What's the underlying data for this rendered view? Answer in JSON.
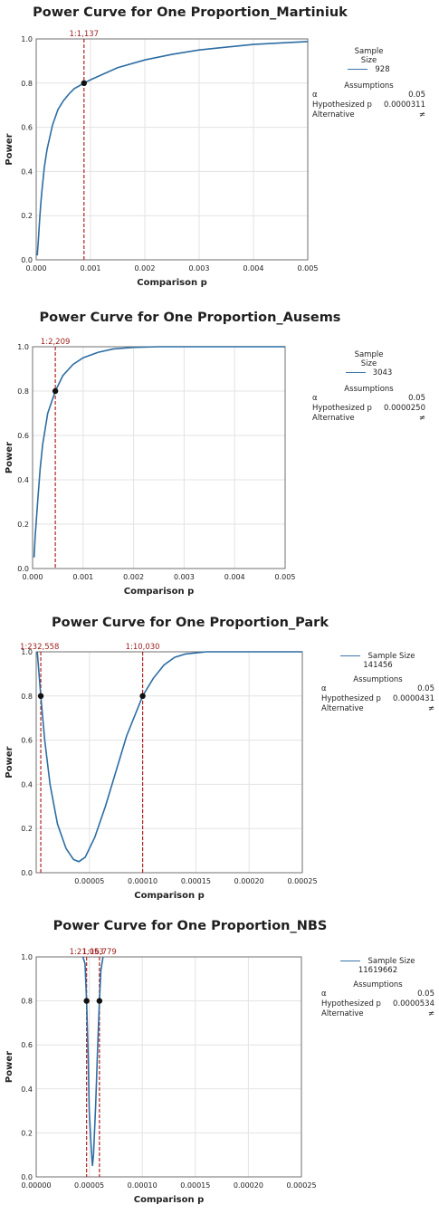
{
  "colors": {
    "curve": "#2d6da3",
    "marker": "#b22222",
    "grid": "#e3e3e3",
    "point": "#111111"
  },
  "chart_data": [
    {
      "type": "line",
      "title": "Power Curve for One Proportion_Martiniuk",
      "xlabel": "Comparison p",
      "ylabel": "Power",
      "xlim": [
        0,
        0.005
      ],
      "ylim": [
        0,
        1
      ],
      "xticks": [
        "0.000",
        "0.001",
        "0.002",
        "0.003",
        "0.004",
        "0.005"
      ],
      "yticks": [
        "0.0",
        "0.2",
        "0.4",
        "0.6",
        "0.8",
        "1.0"
      ],
      "grid": true,
      "series": [
        {
          "values": [
            [
              2e-05,
              0.02
            ],
            [
              4e-05,
              0.09
            ],
            [
              6e-05,
              0.17
            ],
            [
              8e-05,
              0.24
            ],
            [
              0.0001,
              0.3
            ],
            [
              0.00015,
              0.42
            ],
            [
              0.0002,
              0.5
            ],
            [
              0.0003,
              0.61
            ],
            [
              0.0004,
              0.68
            ],
            [
              0.0005,
              0.72
            ],
            [
              0.0006,
              0.75
            ],
            [
              0.0007,
              0.775
            ],
            [
              0.00088,
              0.8
            ],
            [
              0.001,
              0.815
            ],
            [
              0.0015,
              0.87
            ],
            [
              0.002,
              0.905
            ],
            [
              0.0025,
              0.93
            ],
            [
              0.003,
              0.95
            ],
            [
              0.0035,
              0.963
            ],
            [
              0.004,
              0.975
            ],
            [
              0.0045,
              0.982
            ],
            [
              0.005,
              0.988
            ]
          ]
        }
      ],
      "markers": [
        {
          "x": 0.00088,
          "y": 0.8,
          "label": "1:1,137"
        }
      ],
      "legend": {
        "heading": [
          "Sample",
          "Size"
        ],
        "sample_size": "928",
        "assumptions_title": "Assumptions",
        "alpha_label": "α",
        "alpha": "0.05",
        "hyp_label": "Hypothesized p",
        "hyp": "0.0000311",
        "alt_label": "Alternative",
        "alt": "≠"
      }
    },
    {
      "type": "line",
      "title": "Power Curve for One Proportion_Ausems",
      "xlabel": "Comparison p",
      "ylabel": "Power",
      "xlim": [
        0,
        0.005
      ],
      "ylim": [
        0,
        1
      ],
      "xticks": [
        "0.000",
        "0.001",
        "0.002",
        "0.003",
        "0.004",
        "0.005"
      ],
      "yticks": [
        "0.0",
        "0.2",
        "0.4",
        "0.6",
        "0.8",
        "1.0"
      ],
      "grid": true,
      "series": [
        {
          "values": [
            [
              3e-05,
              0.05
            ],
            [
              5e-05,
              0.14
            ],
            [
              0.0001,
              0.3
            ],
            [
              0.00015,
              0.45
            ],
            [
              0.0002,
              0.56
            ],
            [
              0.0003,
              0.7
            ],
            [
              0.00045,
              0.8
            ],
            [
              0.0006,
              0.87
            ],
            [
              0.0008,
              0.92
            ],
            [
              0.001,
              0.95
            ],
            [
              0.0013,
              0.975
            ],
            [
              0.0016,
              0.99
            ],
            [
              0.002,
              0.997
            ],
            [
              0.0025,
              1.0
            ],
            [
              0.005,
              1.0
            ]
          ]
        }
      ],
      "markers": [
        {
          "x": 0.00045,
          "y": 0.8,
          "label": "1:2,209"
        }
      ],
      "legend": {
        "heading": [
          "Sample",
          "Size"
        ],
        "sample_size": "3043",
        "assumptions_title": "Assumptions",
        "alpha_label": "α",
        "alpha": "0.05",
        "hyp_label": "Hypothesized p",
        "hyp": "0.0000250",
        "alt_label": "Alternative",
        "alt": "≠"
      }
    },
    {
      "type": "line",
      "title": "Power Curve for One Proportion_Park",
      "xlabel": "Comparison p",
      "ylabel": "Power",
      "xlim": [
        0,
        0.00025
      ],
      "ylim": [
        0,
        1
      ],
      "xticks": [
        "0.00005",
        "0.00010",
        "0.00015",
        "0.00020",
        "0.00025"
      ],
      "yticks": [
        "0.0",
        "0.2",
        "0.4",
        "0.6",
        "0.8",
        "1.0"
      ],
      "grid": true,
      "series": [
        {
          "values": [
            [
              1e-06,
              1.0
            ],
            [
              2e-06,
              0.94
            ],
            [
              4.3e-06,
              0.8
            ],
            [
              8e-06,
              0.6
            ],
            [
              1.3e-05,
              0.4
            ],
            [
              2e-05,
              0.22
            ],
            [
              2.8e-05,
              0.11
            ],
            [
              3.5e-05,
              0.06
            ],
            [
              4e-05,
              0.05
            ],
            [
              4.6e-05,
              0.07
            ],
            [
              5.5e-05,
              0.16
            ],
            [
              6.5e-05,
              0.3
            ],
            [
              7.5e-05,
              0.46
            ],
            [
              8.5e-05,
              0.62
            ],
            [
              0.0001,
              0.8
            ],
            [
              0.00011,
              0.88
            ],
            [
              0.00012,
              0.94
            ],
            [
              0.00013,
              0.975
            ],
            [
              0.00014,
              0.99
            ],
            [
              0.00016,
              1.0
            ],
            [
              0.00025,
              1.0
            ]
          ]
        }
      ],
      "markers": [
        {
          "x": 4.3e-06,
          "y": 0.8,
          "label": "1:232,558"
        },
        {
          "x": 0.0001,
          "y": 0.8,
          "label": "1:10,030"
        }
      ],
      "legend": {
        "heading": [
          "Sample Size"
        ],
        "sample_size": "141456",
        "assumptions_title": "Assumptions",
        "alpha_label": "α",
        "alpha": "0.05",
        "hyp_label": "Hypothesized p",
        "hyp": "0.0000431",
        "alt_label": "Alternative",
        "alt": "≠"
      }
    },
    {
      "type": "line",
      "title": "Power Curve for One Proportion_NBS",
      "xlabel": "Comparison p",
      "ylabel": "Power",
      "xlim": [
        0,
        0.00025
      ],
      "ylim": [
        0,
        1
      ],
      "xticks": [
        "0.00000",
        "0.00005",
        "0.00010",
        "0.00015",
        "0.00020",
        "0.00025"
      ],
      "yticks": [
        "0.0",
        "0.2",
        "0.4",
        "0.6",
        "0.8",
        "1.0"
      ],
      "grid": true,
      "series": [
        {
          "values": [
            [
              4.4e-05,
              1.0
            ],
            [
              4.6e-05,
              0.97
            ],
            [
              4.75e-05,
              0.8
            ],
            [
              4.9e-05,
              0.55
            ],
            [
              5e-05,
              0.3
            ],
            [
              5.2e-05,
              0.12
            ],
            [
              5.3e-05,
              0.05
            ],
            [
              5.4e-05,
              0.1
            ],
            [
              5.6e-05,
              0.32
            ],
            [
              5.8e-05,
              0.6
            ],
            [
              5.96e-05,
              0.8
            ],
            [
              6.1e-05,
              0.94
            ],
            [
              6.3e-05,
              1.0
            ]
          ]
        }
      ],
      "markers": [
        {
          "x": 4.75e-05,
          "y": 0.8,
          "label": "1:21,053"
        },
        {
          "x": 5.96e-05,
          "y": 0.8,
          "label": "1:16,779"
        }
      ],
      "legend": {
        "heading": [
          "Sample Size"
        ],
        "sample_size": "11619662",
        "assumptions_title": "Assumptions",
        "alpha_label": "α",
        "alpha": "0.05",
        "hyp_label": "Hypothesized p",
        "hyp": "0.0000534",
        "alt_label": "Alternative",
        "alt": "≠"
      }
    }
  ]
}
